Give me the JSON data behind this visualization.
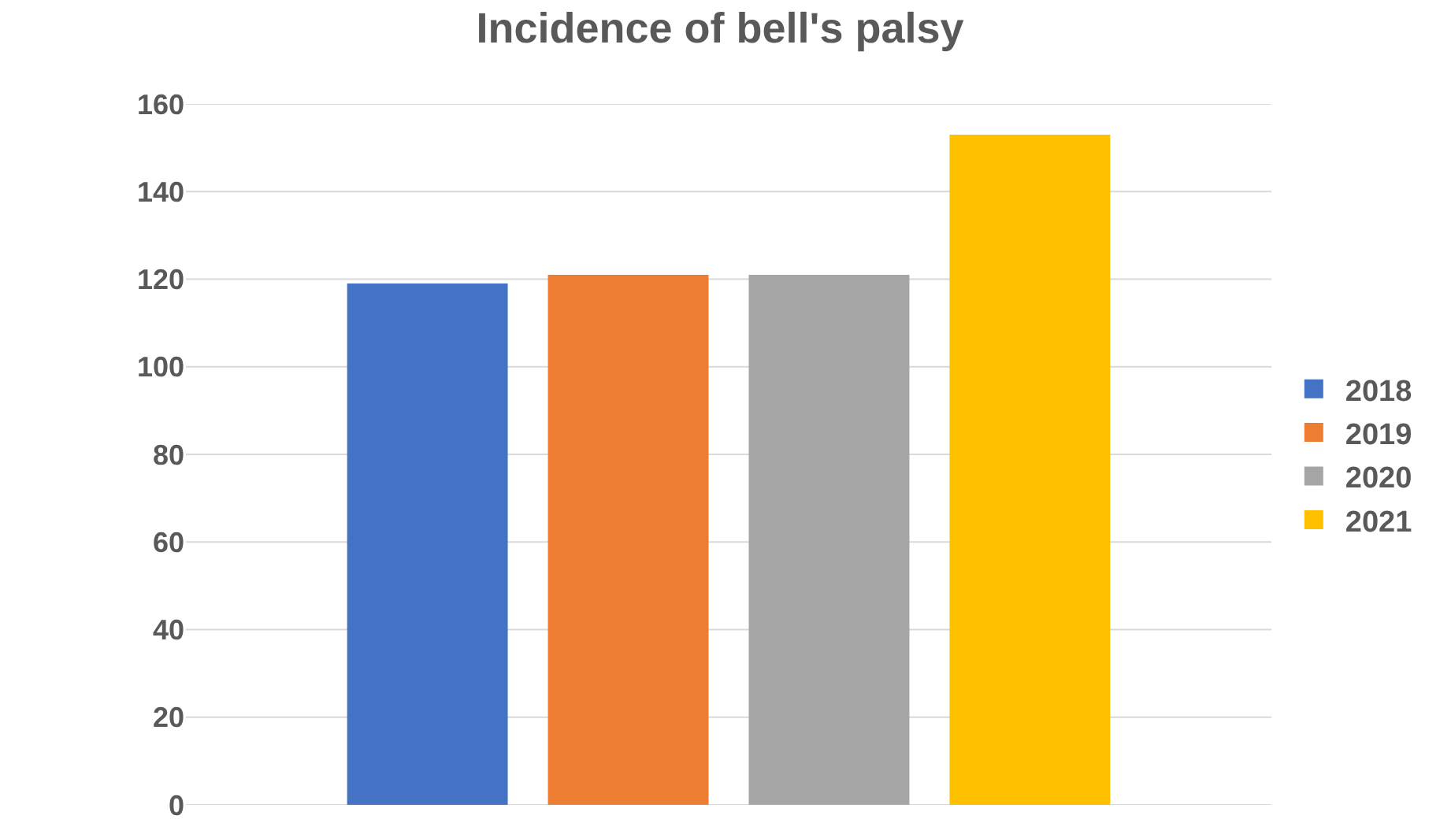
{
  "chart_data": {
    "type": "bar",
    "title": "Incidence of bell's palsy",
    "categories": [
      null
    ],
    "series": [
      {
        "name": "2018",
        "color": "#4472c4",
        "values": [
          119
        ]
      },
      {
        "name": "2019",
        "color": "#ed7d31",
        "values": [
          121
        ]
      },
      {
        "name": "2020",
        "color": "#a5a5a5",
        "values": [
          121
        ]
      },
      {
        "name": "2021",
        "color": "#ffc000",
        "values": [
          153
        ]
      }
    ],
    "ylim": [
      0,
      160
    ],
    "yticks": [
      0,
      20,
      40,
      60,
      80,
      100,
      120,
      140,
      160
    ],
    "grid": "y",
    "legend": "right"
  }
}
